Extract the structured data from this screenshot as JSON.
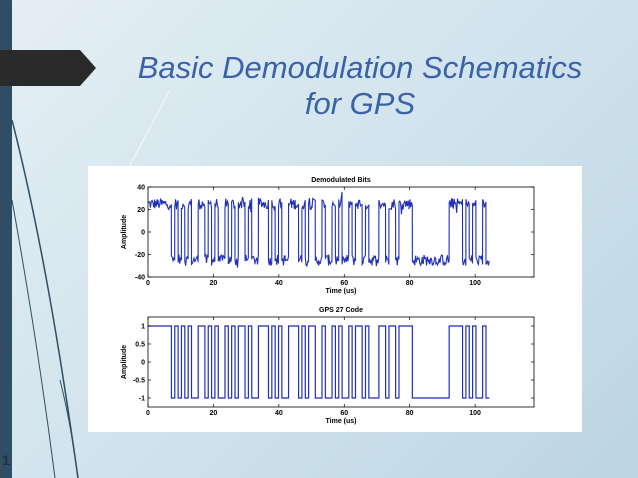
{
  "slide": {
    "title_line1": "Basic Demodulation Schematics",
    "title_line2": "for GPS",
    "page_number": "1",
    "colors": {
      "title": "#3a62a8",
      "left_bar": "#2f4d63",
      "signal": "#1f2fb8"
    }
  },
  "chart_data": [
    {
      "type": "line",
      "title": "Demodulated Bits",
      "xlabel": "Time (us)",
      "ylabel": "Amplitude",
      "xlim": [
        0,
        118
      ],
      "ylim": [
        -40,
        40
      ],
      "xticks": [
        0,
        20,
        40,
        60,
        80,
        100
      ],
      "yticks": [
        -40,
        -20,
        0,
        20,
        40
      ],
      "grid": false,
      "noise": true,
      "levels": [
        -25,
        25
      ],
      "bits": [
        1,
        1,
        1,
        1,
        1,
        1,
        1,
        0,
        1,
        0,
        1,
        0,
        1,
        0,
        0,
        1,
        1,
        0,
        1,
        0,
        1,
        0,
        0,
        1,
        0,
        1,
        0,
        1,
        1,
        0,
        1,
        0,
        0,
        1,
        1,
        1,
        0,
        1,
        0,
        1,
        0,
        0,
        1,
        1,
        1,
        0,
        1,
        0,
        1,
        1,
        0,
        0,
        1,
        0,
        0,
        1,
        0,
        1,
        0,
        0,
        1,
        0,
        1,
        1,
        0,
        1,
        0,
        0,
        0,
        1,
        1,
        0,
        1,
        1,
        0,
        1,
        1,
        1,
        1,
        0,
        0,
        0,
        0,
        0,
        0,
        0,
        0,
        0,
        0,
        0,
        1,
        1,
        1,
        1,
        0,
        1,
        0,
        1,
        0,
        0,
        1,
        0
      ],
      "bit_duration_us": 1.023
    },
    {
      "type": "line",
      "title": "GPS 27 Code",
      "xlabel": "Time (us)",
      "ylabel": "Amplitude",
      "xlim": [
        0,
        118
      ],
      "ylim": [
        -1.25,
        1.25
      ],
      "xticks": [
        0,
        20,
        40,
        60,
        80,
        100
      ],
      "yticks": [
        -1,
        -0.5,
        0,
        0.5,
        1
      ],
      "grid": false,
      "noise": false,
      "levels": [
        -1,
        1
      ],
      "bits": [
        1,
        1,
        1,
        1,
        1,
        1,
        1,
        0,
        1,
        0,
        1,
        0,
        1,
        0,
        0,
        1,
        1,
        0,
        1,
        0,
        1,
        0,
        0,
        1,
        0,
        1,
        0,
        1,
        1,
        0,
        1,
        0,
        0,
        1,
        1,
        1,
        0,
        1,
        0,
        1,
        0,
        0,
        1,
        1,
        1,
        0,
        1,
        0,
        1,
        1,
        0,
        0,
        1,
        0,
        0,
        1,
        0,
        1,
        0,
        0,
        1,
        0,
        1,
        1,
        0,
        1,
        0,
        0,
        0,
        1,
        1,
        0,
        1,
        1,
        0,
        1,
        1,
        1,
        1,
        0,
        0,
        0,
        0,
        0,
        0,
        0,
        0,
        0,
        0,
        0,
        1,
        1,
        1,
        1,
        0,
        1,
        0,
        1,
        0,
        0,
        1,
        0
      ],
      "bit_duration_us": 1.023
    }
  ]
}
